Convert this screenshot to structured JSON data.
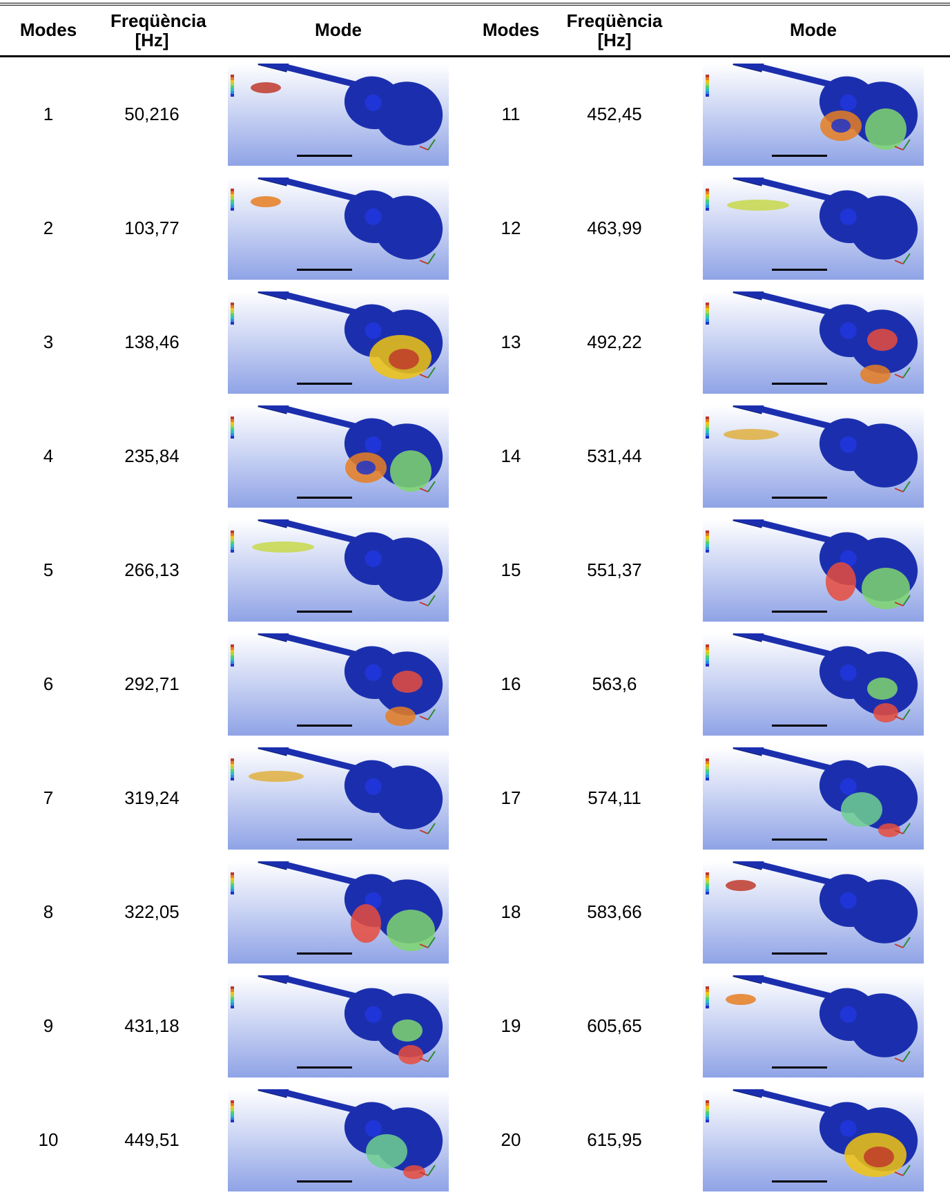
{
  "table": {
    "header": [
      "Modes",
      "Freqüència [Hz]",
      "Mode",
      "Modes",
      "Freqüència [Hz]",
      "Mode"
    ],
    "rows": [
      [
        "1",
        "50,216",
        "11",
        "452,45"
      ],
      [
        "2",
        "103,77",
        "12",
        "463,99"
      ],
      [
        "3",
        "138,46",
        "13",
        "492,22"
      ],
      [
        "4",
        "235,84",
        "14",
        "531,44"
      ],
      [
        "5",
        "266,13",
        "15",
        "551,37"
      ],
      [
        "6",
        "292,71",
        "16",
        "563,6"
      ],
      [
        "7",
        "319,24",
        "17",
        "574,11"
      ],
      [
        "8",
        "322,05",
        "18",
        "583,66"
      ],
      [
        "9",
        "431,18",
        "19",
        "605,65"
      ],
      [
        "10",
        "449,51",
        "20",
        "615,95"
      ]
    ]
  }
}
